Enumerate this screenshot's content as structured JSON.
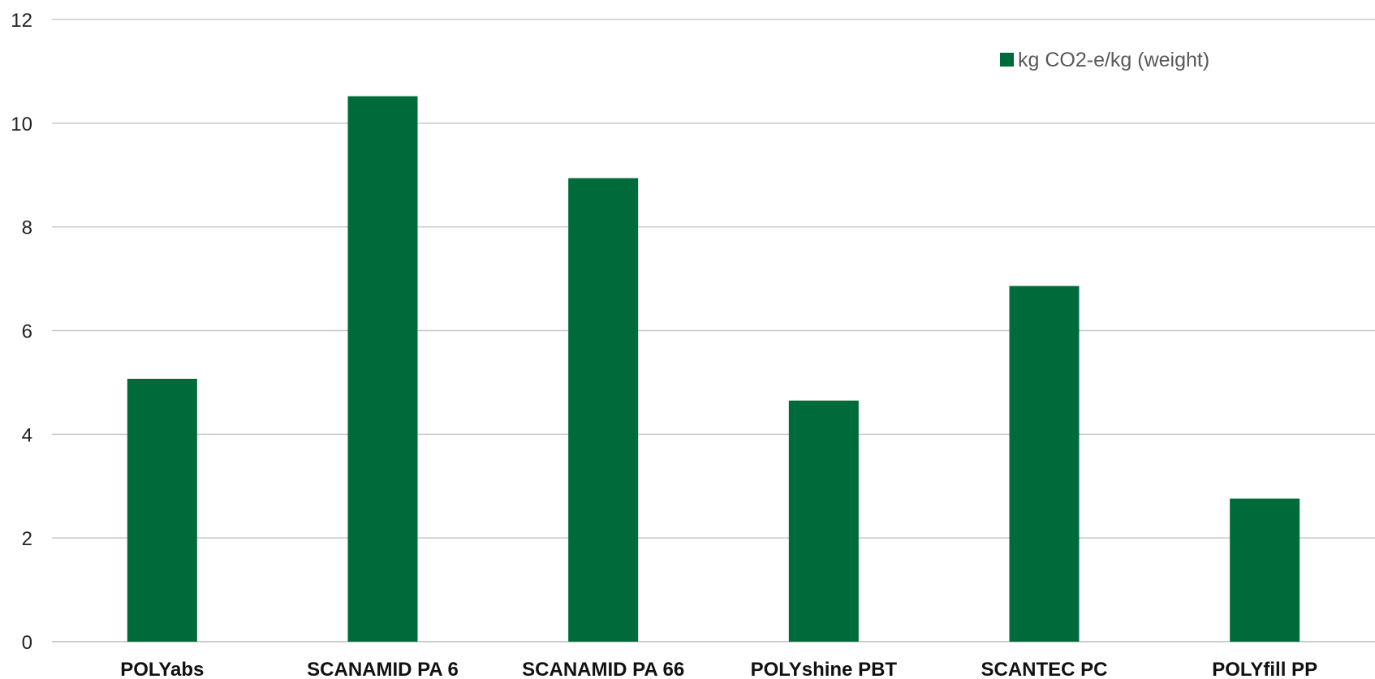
{
  "chart_data": {
    "type": "bar",
    "categories": [
      "POLYabs",
      "SCANAMID PA 6",
      "SCANAMID PA 66",
      "POLYshine PBT",
      "SCANTEC PC",
      "POLYfill PP"
    ],
    "series": [
      {
        "name": "kg CO2-e/kg (weight)",
        "values": [
          5.07,
          10.52,
          8.94,
          4.65,
          6.86,
          2.76
        ],
        "color": "#006b3a"
      }
    ],
    "y_ticks": [
      "0",
      "2",
      "4",
      "6",
      "8",
      "10",
      "12"
    ],
    "ylim": [
      0,
      12
    ],
    "grid": true,
    "legend_position": "top-right"
  }
}
